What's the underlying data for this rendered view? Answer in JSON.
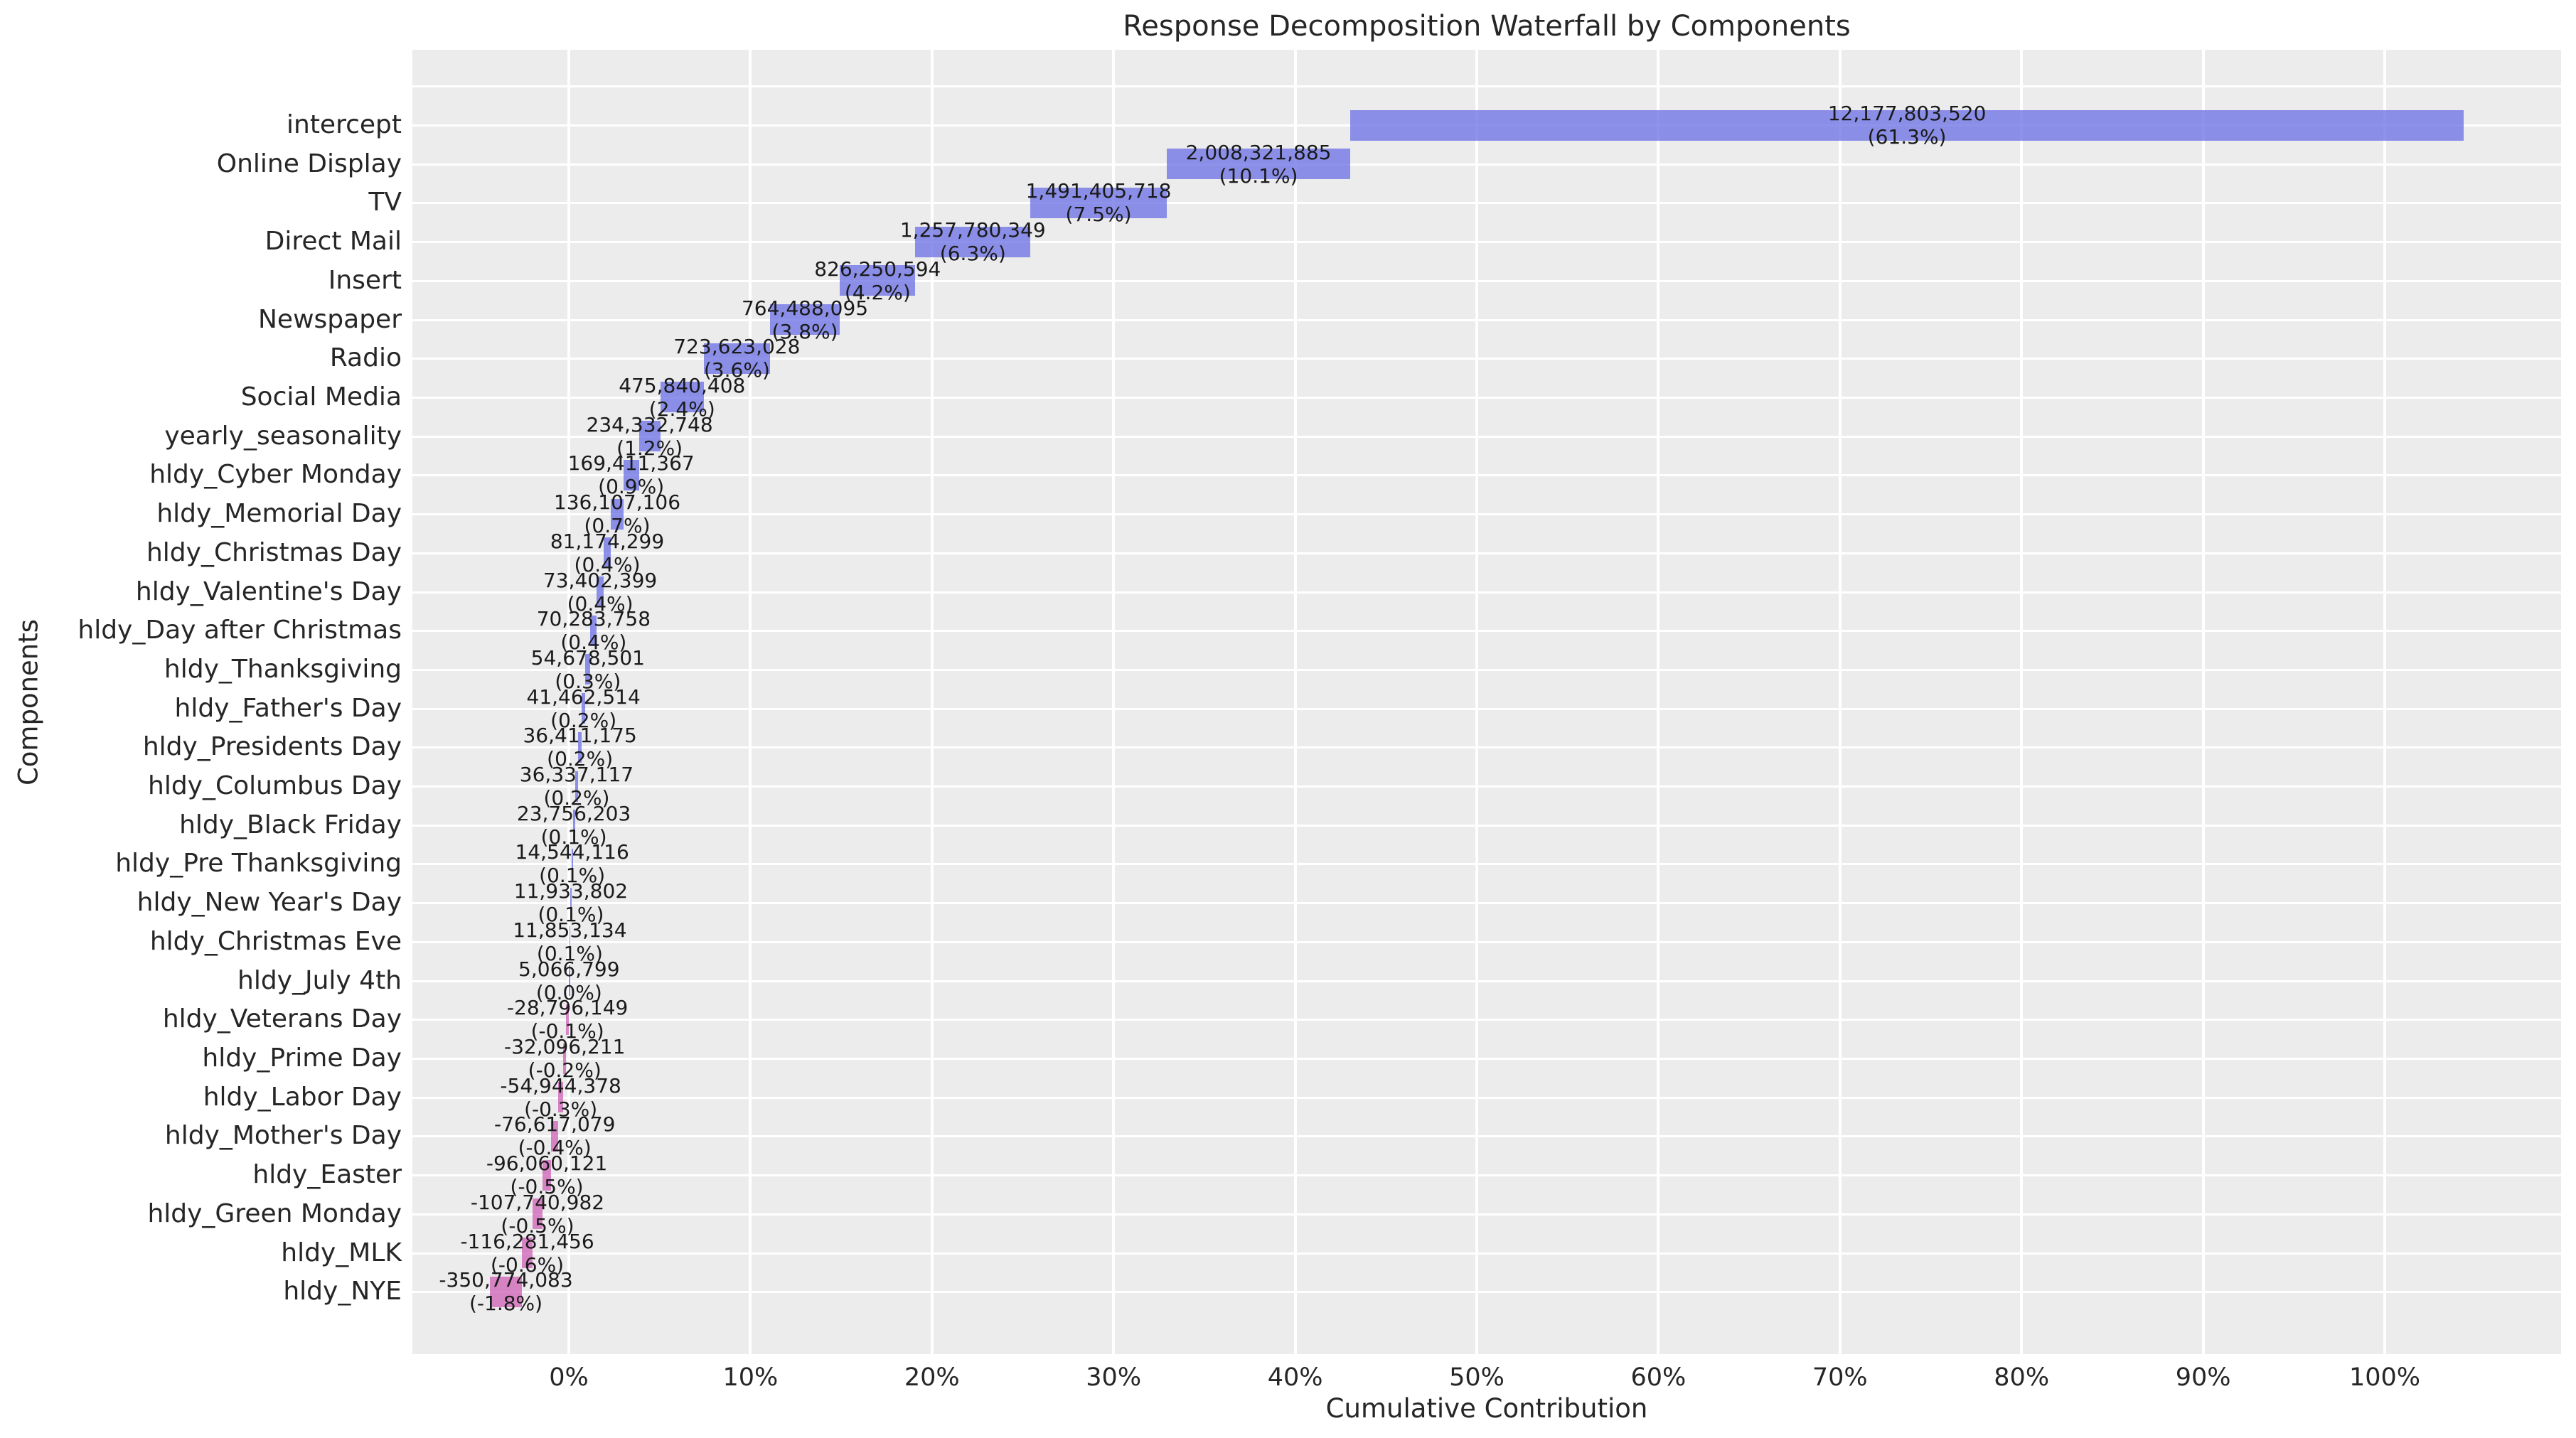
{
  "chart_data": {
    "type": "bar",
    "variant": "horizontal-waterfall",
    "title": "Response Decomposition Waterfall by Components",
    "xlabel": "Cumulative Contribution",
    "ylabel": "Components",
    "x_ticks": [
      "0%",
      "10%",
      "20%",
      "30%",
      "40%",
      "50%",
      "60%",
      "70%",
      "80%",
      "90%",
      "100%"
    ],
    "x_tick_percents": [
      0,
      10,
      20,
      30,
      40,
      50,
      60,
      70,
      80,
      90,
      100
    ],
    "axis_range_pct": [
      -8.6,
      109.8
    ],
    "grid": true,
    "legend_position": "none",
    "colors": {
      "positive_bar": "#8a8ee6",
      "negative_bar": "#d683c3",
      "plot_background": "#ececec",
      "gridline": "#ffffff",
      "text": "#262626"
    },
    "categories": [
      "intercept",
      "Online Display",
      "TV",
      "Direct Mail",
      "Insert",
      "Newspaper",
      "Radio",
      "Social Media",
      "yearly_seasonality",
      "hldy_Cyber Monday",
      "hldy_Memorial Day",
      "hldy_Christmas Day",
      "hldy_Valentine's Day",
      "hldy_Day after Christmas",
      "hldy_Thanksgiving",
      "hldy_Father's Day",
      "hldy_Presidents Day",
      "hldy_Columbus Day",
      "hldy_Black Friday",
      "hldy_Pre Thanksgiving",
      "hldy_New Year's Day",
      "hldy_Christmas Eve",
      "hldy_July 4th",
      "hldy_Veterans Day",
      "hldy_Prime Day",
      "hldy_Labor Day",
      "hldy_Mother's Day",
      "hldy_Easter",
      "hldy_Green Monday",
      "hldy_MLK",
      "hldy_NYE"
    ],
    "items": [
      {
        "name": "intercept",
        "value": 12177803520,
        "label_value": "12,177,803,520",
        "label_pct": "(61.3%)"
      },
      {
        "name": "Online Display",
        "value": 2008321885,
        "label_value": "2,008,321,885",
        "label_pct": "(10.1%)"
      },
      {
        "name": "TV",
        "value": 1491405718,
        "label_value": "1,491,405,718",
        "label_pct": "(7.5%)"
      },
      {
        "name": "Direct Mail",
        "value": 1257780349,
        "label_value": "1,257,780,349",
        "label_pct": "(6.3%)"
      },
      {
        "name": "Insert",
        "value": 826250594,
        "label_value": "826,250,594",
        "label_pct": "(4.2%)"
      },
      {
        "name": "Newspaper",
        "value": 764488095,
        "label_value": "764,488,095",
        "label_pct": "(3.8%)"
      },
      {
        "name": "Radio",
        "value": 723623028,
        "label_value": "723,623,028",
        "label_pct": "(3.6%)"
      },
      {
        "name": "Social Media",
        "value": 475840408,
        "label_value": "475,840,408",
        "label_pct": "(2.4%)"
      },
      {
        "name": "yearly_seasonality",
        "value": 234332748,
        "label_value": "234,332,748",
        "label_pct": "(1.2%)"
      },
      {
        "name": "hldy_Cyber Monday",
        "value": 169411367,
        "label_value": "169,411,367",
        "label_pct": "(0.9%)"
      },
      {
        "name": "hldy_Memorial Day",
        "value": 136107106,
        "label_value": "136,107,106",
        "label_pct": "(0.7%)"
      },
      {
        "name": "hldy_Christmas Day",
        "value": 81174299,
        "label_value": "81,174,299",
        "label_pct": "(0.4%)"
      },
      {
        "name": "hldy_Valentine's Day",
        "value": 73402399,
        "label_value": "73,402,399",
        "label_pct": "(0.4%)"
      },
      {
        "name": "hldy_Day after Christmas",
        "value": 70283758,
        "label_value": "70,283,758",
        "label_pct": "(0.4%)"
      },
      {
        "name": "hldy_Thanksgiving",
        "value": 54678501,
        "label_value": "54,678,501",
        "label_pct": "(0.3%)"
      },
      {
        "name": "hldy_Father's Day",
        "value": 41462514,
        "label_value": "41,462,514",
        "label_pct": "(0.2%)"
      },
      {
        "name": "hldy_Presidents Day",
        "value": 36411175,
        "label_value": "36,411,175",
        "label_pct": "(0.2%)"
      },
      {
        "name": "hldy_Columbus Day",
        "value": 36337117,
        "label_value": "36,337,117",
        "label_pct": "(0.2%)"
      },
      {
        "name": "hldy_Black Friday",
        "value": 23756203,
        "label_value": "23,756,203",
        "label_pct": "(0.1%)"
      },
      {
        "name": "hldy_Pre Thanksgiving",
        "value": 14544116,
        "label_value": "14,544,116",
        "label_pct": "(0.1%)"
      },
      {
        "name": "hldy_New Year's Day",
        "value": 11933802,
        "label_value": "11,933,802",
        "label_pct": "(0.1%)"
      },
      {
        "name": "hldy_Christmas Eve",
        "value": 11853134,
        "label_value": "11,853,134",
        "label_pct": "(0.1%)"
      },
      {
        "name": "hldy_July 4th",
        "value": 5066799,
        "label_value": "5,066,799",
        "label_pct": "(0.0%)"
      },
      {
        "name": "hldy_Veterans Day",
        "value": -28796149,
        "label_value": "-28,796,149",
        "label_pct": "(-0.1%)"
      },
      {
        "name": "hldy_Prime Day",
        "value": -32096211,
        "label_value": "-32,096,211",
        "label_pct": "(-0.2%)"
      },
      {
        "name": "hldy_Labor Day",
        "value": -54944378,
        "label_value": "-54,944,378",
        "label_pct": "(-0.3%)"
      },
      {
        "name": "hldy_Mother's Day",
        "value": -76617079,
        "label_value": "-76,617,079",
        "label_pct": "(-0.4%)"
      },
      {
        "name": "hldy_Easter",
        "value": -96060121,
        "label_value": "-96,060,121",
        "label_pct": "(-0.5%)"
      },
      {
        "name": "hldy_Green Monday",
        "value": -107740982,
        "label_value": "-107,740,982",
        "label_pct": "(-0.5%)"
      },
      {
        "name": "hldy_MLK",
        "value": -116281456,
        "label_value": "-116,281,456",
        "label_pct": "(-0.6%)"
      },
      {
        "name": "hldy_NYE",
        "value": -350774083,
        "label_value": "-350,774,083",
        "label_pct": "(-1.8%)"
      }
    ]
  }
}
